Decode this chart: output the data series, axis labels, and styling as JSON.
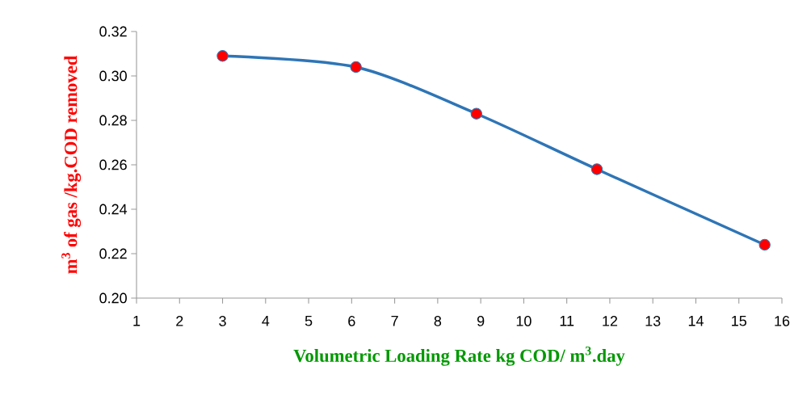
{
  "chart_data": {
    "type": "line",
    "x": [
      3.0,
      6.1,
      8.9,
      11.7,
      15.6
    ],
    "series": [
      {
        "color": "#2e75b6",
        "values": [
          0.309,
          0.304,
          0.283,
          0.258,
          0.224
        ]
      }
    ],
    "marker": "circle",
    "xlabel": "Volumetric Loading Rate kg COD/ m$^{3}$.day",
    "ylabel": "m$^{3}$ of gas /kg.COD removed",
    "xlim": [
      1,
      16
    ],
    "xticks": [
      1,
      2,
      3,
      4,
      5,
      6,
      7,
      8,
      9,
      10,
      11,
      12,
      13,
      14,
      15,
      16
    ],
    "ylim": [
      0.2,
      0.32
    ],
    "yticks": [
      {
        "value": 0.2,
        "label": "0.20"
      },
      {
        "value": 0.22,
        "label": "0.22"
      },
      {
        "value": 0.24,
        "label": "0.24"
      },
      {
        "value": 0.26,
        "label": "0.26"
      },
      {
        "value": 0.28,
        "label": "0.28"
      },
      {
        "value": 0.3,
        "label": "0.30"
      },
      {
        "value": 0.32,
        "label": "0.32"
      }
    ],
    "grid": false
  }
}
